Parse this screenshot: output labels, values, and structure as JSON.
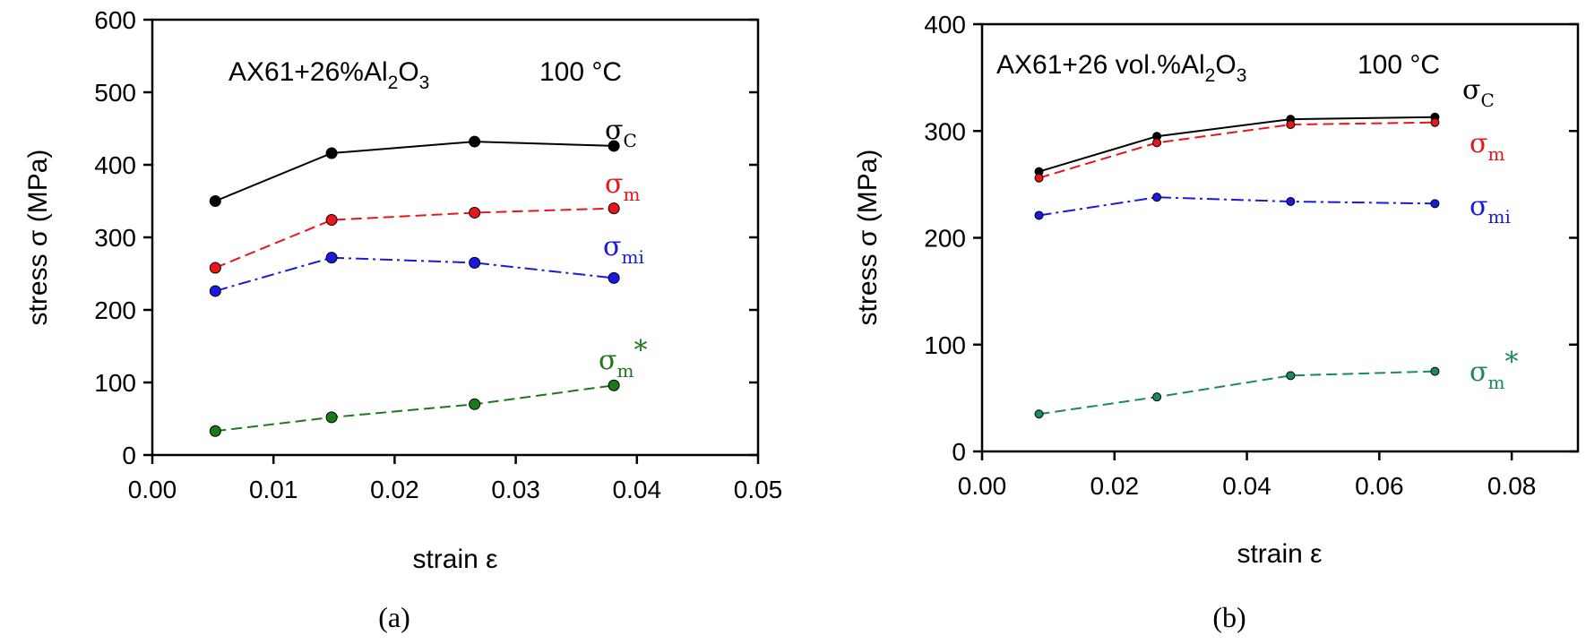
{
  "chart_data": [
    {
      "type": "line",
      "panel_label": "(a)",
      "annotation": {
        "material_prefix": "AX61+26%Al",
        "subscript2": "2",
        "o": "O",
        "subscript3": "3",
        "temperature": "100 °C"
      },
      "xlabel": "strain ε",
      "ylabel": "stress σ (MPa)",
      "xlim": [
        0,
        0.05
      ],
      "ylim": [
        0,
        600
      ],
      "x_ticks": [
        "0.00",
        "0.01",
        "0.02",
        "0.03",
        "0.04",
        "0.05"
      ],
      "x_tick_values": [
        0,
        0.01,
        0.02,
        0.03,
        0.04,
        0.05
      ],
      "y_ticks": [
        "0",
        "100",
        "200",
        "300",
        "400",
        "500",
        "600"
      ],
      "y_tick_values": [
        0,
        100,
        200,
        300,
        400,
        500,
        600
      ],
      "x": [
        0.0052,
        0.0148,
        0.0266,
        0.0381
      ],
      "series": [
        {
          "name": "σC",
          "symbol": "σ",
          "subscript": "C",
          "superscript": "",
          "color": "#000000",
          "dash": "solid",
          "values": [
            350,
            416,
            432,
            426
          ]
        },
        {
          "name": "σm",
          "symbol": "σ",
          "subscript": "m",
          "superscript": "",
          "color": "#e8161b",
          "dash": "dashed",
          "values": [
            258,
            324,
            334,
            340
          ]
        },
        {
          "name": "σmi",
          "symbol": "σ",
          "subscript": "mi",
          "superscript": "",
          "color": "#1a1adf",
          "dash": "dashdot",
          "values": [
            226,
            272,
            265,
            244
          ]
        },
        {
          "name": "σm*",
          "symbol": "σ",
          "subscript": "m",
          "superscript": "*",
          "color": "#1a7a1a",
          "dash": "dashed",
          "values": [
            33,
            52,
            70,
            96
          ]
        }
      ]
    },
    {
      "type": "line",
      "panel_label": "(b)",
      "annotation": {
        "material_prefix": "AX61+26 vol.%Al",
        "subscript2": "2",
        "o": "O",
        "subscript3": "3",
        "temperature": "100 °C"
      },
      "xlabel": "strain ε",
      "ylabel": "stress σ (MPa)",
      "xlim": [
        0,
        0.09
      ],
      "ylim": [
        0,
        400
      ],
      "x_ticks": [
        "0.00",
        "0.02",
        "0.04",
        "0.06",
        "0.08"
      ],
      "x_tick_values": [
        0,
        0.02,
        0.04,
        0.06,
        0.08
      ],
      "y_ticks": [
        "0",
        "100",
        "200",
        "300",
        "400"
      ],
      "y_tick_values": [
        0,
        100,
        200,
        300,
        400
      ],
      "x": [
        0.0086,
        0.0264,
        0.0466,
        0.0684
      ],
      "series": [
        {
          "name": "σC",
          "symbol": "σ",
          "subscript": "C",
          "superscript": "",
          "color": "#000000",
          "dash": "solid",
          "values": [
            262,
            295,
            311,
            313
          ]
        },
        {
          "name": "σm",
          "symbol": "σ",
          "subscript": "m",
          "superscript": "",
          "color": "#e8161b",
          "dash": "dashed",
          "values": [
            256,
            289,
            306,
            308
          ]
        },
        {
          "name": "σmi",
          "symbol": "σ",
          "subscript": "mi",
          "superscript": "",
          "color": "#1a1adf",
          "dash": "dashdot",
          "values": [
            221,
            238,
            234,
            232
          ]
        },
        {
          "name": "σm*",
          "symbol": "σ",
          "subscript": "m",
          "superscript": "*",
          "color": "#1a8a5a",
          "dash": "dashed",
          "values": [
            35,
            51,
            71,
            75
          ]
        }
      ]
    }
  ]
}
